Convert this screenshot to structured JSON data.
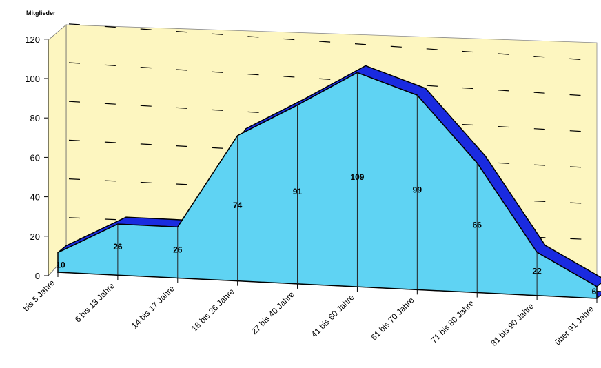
{
  "chart_data": {
    "type": "area",
    "title": "",
    "ylabel": "Mitglieder",
    "xlabel": "",
    "ylim": [
      0,
      120
    ],
    "yticks": [
      0,
      20,
      40,
      60,
      80,
      100,
      120
    ],
    "grid": true,
    "categories": [
      "bis 5 Jahre",
      "6 bis 13 Jahre",
      "14 bis 17 Jahre",
      "18 bis 26 Jahre",
      "27 bis 40 Jahre",
      "41 bis 60 Jahre",
      "61 bis 70 Jahre",
      "71 bis 80 Jahre",
      "81 bis 90 Jahre",
      "über 91 Jahre"
    ],
    "series": [
      {
        "values": [
          10,
          26,
          26,
          74,
          91,
          109,
          99,
          66,
          22,
          6
        ]
      }
    ],
    "data_labels": [
      "10",
      "26",
      "26",
      "74",
      "91",
      "109",
      "99",
      "66",
      "22",
      "6"
    ],
    "colors": {
      "area": "#5fd3f3",
      "top_edge": "#1a2be0",
      "wall": "#fdf6c0",
      "outline": "#000000"
    }
  }
}
